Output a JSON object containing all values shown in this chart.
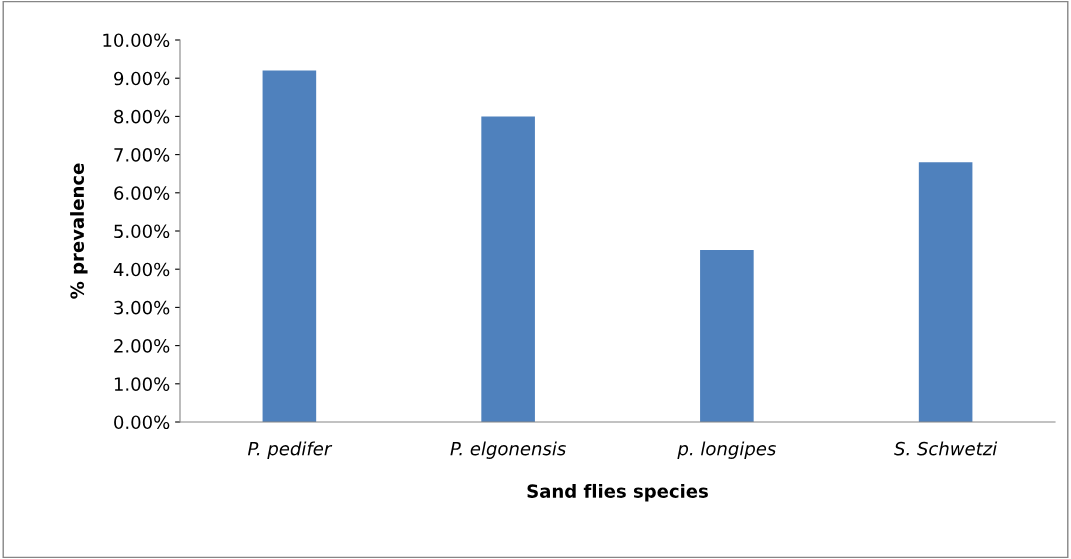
{
  "chart_data": {
    "type": "bar",
    "xlabel": "Sand flies species",
    "ylabel": "% prevalence",
    "categories": [
      "P. pedifer",
      "P. elgonensis",
      "p. longipes",
      "S. Schwetzi"
    ],
    "values": [
      9.2,
      8.0,
      4.5,
      6.8
    ],
    "color": "#4f81bd",
    "ylim": [
      0,
      10
    ],
    "yticks": [
      {
        "value": 0,
        "label": "0.00%"
      },
      {
        "value": 1,
        "label": "1.00%"
      },
      {
        "value": 2,
        "label": "2.00%"
      },
      {
        "value": 3,
        "label": "3.00%"
      },
      {
        "value": 4,
        "label": "4.00%"
      },
      {
        "value": 5,
        "label": "5.00%"
      },
      {
        "value": 6,
        "label": "6.00%"
      },
      {
        "value": 7,
        "label": "7.00%"
      },
      {
        "value": 8,
        "label": "8.00%"
      },
      {
        "value": 9,
        "label": "9.00%"
      },
      {
        "value": 10,
        "label": "10.00%"
      }
    ],
    "grid": false,
    "legend": false
  }
}
